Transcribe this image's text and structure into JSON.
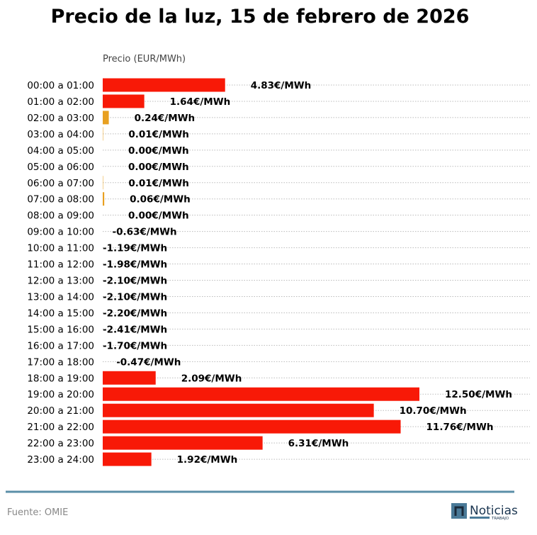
{
  "chart_data": {
    "type": "bar",
    "orientation": "horizontal",
    "title": "Precio de la luz, 15 de febrero de 2026",
    "xlabel": "Precio (EUR/MWh)",
    "value_suffix": "€/MWh",
    "grid": true,
    "categories": [
      "00:00 a 01:00",
      "01:00 a 02:00",
      "02:00 a 03:00",
      "03:00 a 04:00",
      "04:00 a 05:00",
      "05:00 a 06:00",
      "06:00 a 07:00",
      "07:00 a 08:00",
      "08:00 a 09:00",
      "09:00 a 10:00",
      "10:00 a 11:00",
      "11:00 a 12:00",
      "12:00 a 13:00",
      "13:00 a 14:00",
      "14:00 a 15:00",
      "15:00 a 16:00",
      "16:00 a 17:00",
      "17:00 a 18:00",
      "18:00 a 19:00",
      "19:00 a 20:00",
      "20:00 a 21:00",
      "21:00 a 22:00",
      "22:00 a 23:00",
      "23:00 a 24:00"
    ],
    "values": [
      4.83,
      1.64,
      0.24,
      0.01,
      0.0,
      0.0,
      0.01,
      0.06,
      0.0,
      -0.63,
      -1.19,
      -1.98,
      -2.1,
      -2.1,
      -2.2,
      -2.41,
      -1.7,
      -0.47,
      2.09,
      12.5,
      10.7,
      11.76,
      6.31,
      1.92
    ],
    "colors": {
      "high": "#f81907",
      "low": "#e8a020"
    }
  },
  "source": "Fuente: OMIE",
  "logo": {
    "text": "Noticias",
    "subtext": "TRABAJO",
    "color": "#4a7a98"
  }
}
